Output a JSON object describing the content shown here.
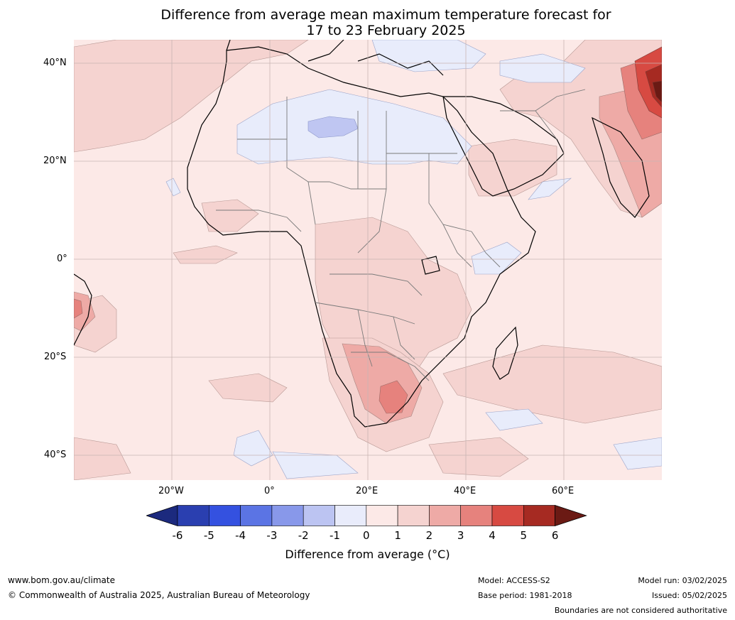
{
  "title": {
    "line1": "Difference from average mean maximum temperature forecast for",
    "line2": "17 to 23 February 2025"
  },
  "map": {
    "lat_labels": [
      "40°N",
      "20°N",
      "0°",
      "20°S",
      "40°S"
    ],
    "lon_labels": [
      "20°W",
      "0°",
      "20°E",
      "40°E",
      "60°E"
    ],
    "colors": {
      "ocean_land_base": "#fce9e7",
      "anom_1_2": "#f5d3d0",
      "anom_2_3": "#eeaaa6",
      "anom_3_4": "#e6827d",
      "anom_4_5": "#d74a42",
      "anom_5_6": "#a62a22",
      "anom_gt6": "#6b1a14",
      "anom_m1_0": "#e8ecfb",
      "anom_m2_m1": "#bfc6f2",
      "coast": "#000000",
      "border": "#7a7a7a",
      "grid": "#c8b5b3"
    }
  },
  "colorbar": {
    "title": "Difference from average ($^\\circ$C)",
    "title_display": "Difference from average (°C)",
    "ticks": [
      "-6",
      "-5",
      "-4",
      "-3",
      "-2",
      "-1",
      "0",
      "1",
      "2",
      "3",
      "4",
      "5",
      "6"
    ],
    "colors": [
      "#1c2a7e",
      "#2a3fb0",
      "#3451e0",
      "#5b74e4",
      "#8898ea",
      "#bcc4f2",
      "#e9ecfb",
      "#fce9e7",
      "#f5d3d0",
      "#eeaaa6",
      "#e6827d",
      "#d74a42",
      "#a62a22",
      "#6b1a14"
    ]
  },
  "footer": {
    "website": "www.bom.gov.au/climate",
    "copyright": "© Commonwealth of Australia 2025, Australian Bureau of Meteorology",
    "model": "Model: ACCESS-S2",
    "base_period": "Base period: 1981-2018",
    "model_run": "Model run: 03/02/2025",
    "issued": "Issued: 05/02/2025",
    "disclaimer": "Boundaries are not considered authoritative"
  }
}
